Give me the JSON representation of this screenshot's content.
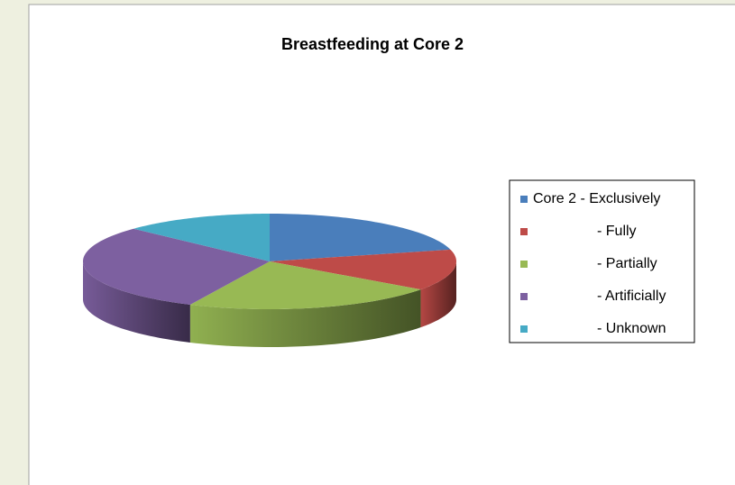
{
  "chart_data": {
    "type": "pie",
    "title": "Breastfeeding at Core 2",
    "categories": [
      "Core 2 - Exclusively",
      "- Fully",
      "- Partially",
      "- Artificially",
      "- Unknown"
    ],
    "values": [
      21,
      14,
      22,
      30,
      13
    ],
    "colors": [
      "#4a7ebb",
      "#be4b48",
      "#98b954",
      "#7d60a0",
      "#46aac5"
    ],
    "legend": "right"
  }
}
